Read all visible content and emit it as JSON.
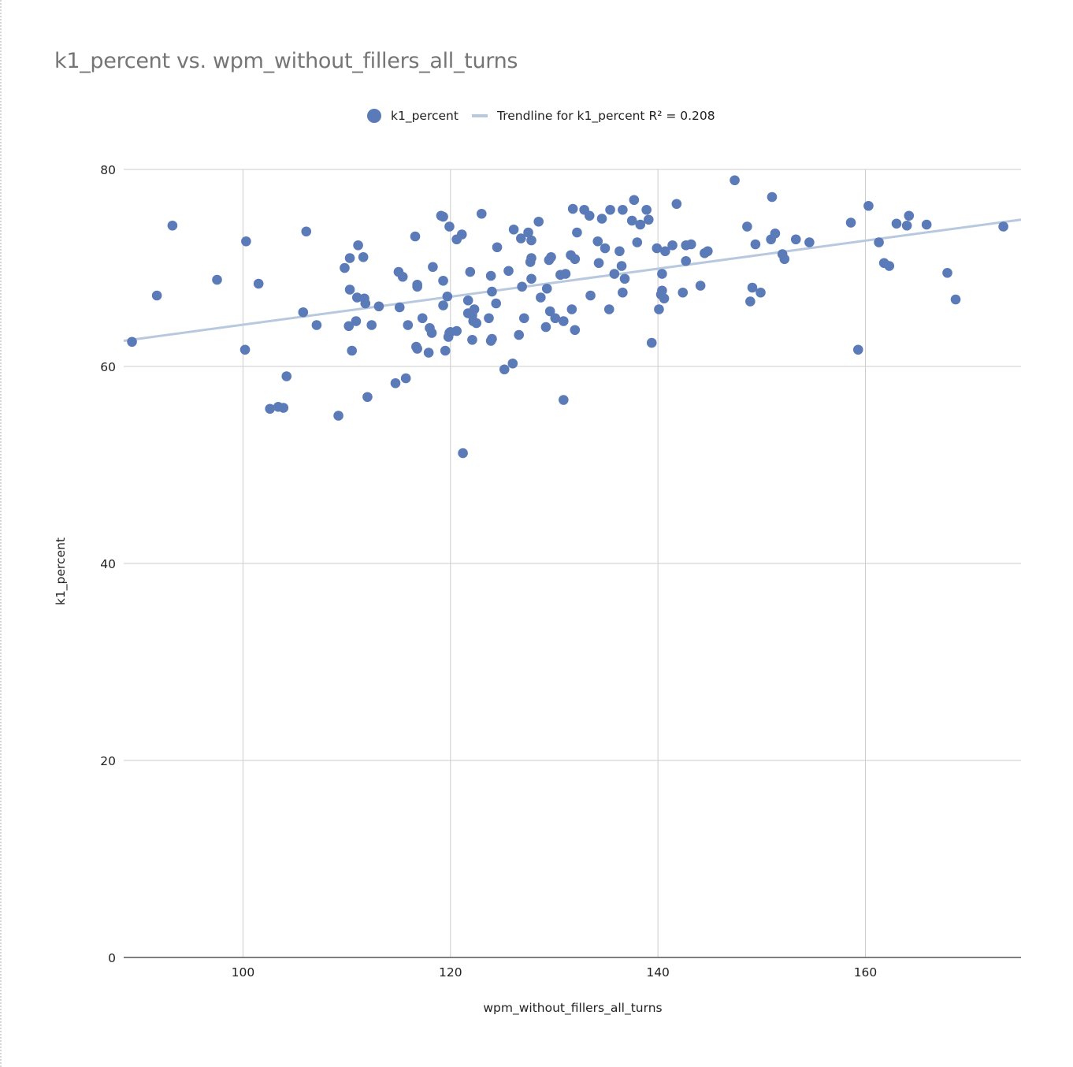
{
  "chart_data": {
    "type": "scatter",
    "title": "k1_percent vs. wpm_without_fillers_all_turns",
    "xlabel": "wpm_without_fillers_all_turns",
    "ylabel": "k1_percent",
    "xlim": [
      88.5,
      175
    ],
    "ylim": [
      0,
      80
    ],
    "xticks": [
      100,
      120,
      140,
      160
    ],
    "yticks": [
      0,
      20,
      40,
      60,
      80
    ],
    "grid": true,
    "legend_position": "top",
    "colors": {
      "points": "#5a7ab8",
      "trendline": "#b8c9df"
    },
    "series": [
      {
        "name": "k1_percent",
        "points": [
          [
            89.3,
            62.5
          ],
          [
            91.7,
            67.2
          ],
          [
            93.2,
            74.3
          ],
          [
            97.5,
            68.8
          ],
          [
            100.2,
            61.7
          ],
          [
            100.3,
            72.7
          ],
          [
            101.5,
            68.4
          ],
          [
            102.6,
            55.7
          ],
          [
            103.4,
            55.9
          ],
          [
            103.9,
            55.8
          ],
          [
            104.2,
            59.0
          ],
          [
            105.8,
            65.5
          ],
          [
            106.1,
            73.7
          ],
          [
            107.1,
            64.2
          ],
          [
            109.2,
            55.0
          ],
          [
            109.8,
            70.0
          ],
          [
            110.2,
            64.1
          ],
          [
            110.3,
            71.0
          ],
          [
            110.3,
            67.8
          ],
          [
            110.5,
            61.6
          ],
          [
            110.9,
            64.6
          ],
          [
            111.0,
            67.0
          ],
          [
            111.1,
            72.3
          ],
          [
            111.6,
            71.1
          ],
          [
            111.7,
            66.9
          ],
          [
            111.8,
            66.4
          ],
          [
            112.0,
            56.9
          ],
          [
            112.4,
            64.2
          ],
          [
            113.1,
            66.1
          ],
          [
            114.7,
            58.3
          ],
          [
            115.0,
            69.6
          ],
          [
            115.1,
            66.0
          ],
          [
            115.4,
            69.1
          ],
          [
            115.7,
            58.8
          ],
          [
            115.9,
            64.2
          ],
          [
            116.6,
            73.2
          ],
          [
            116.7,
            62.0
          ],
          [
            116.8,
            68.3
          ],
          [
            116.8,
            61.8
          ],
          [
            116.8,
            68.1
          ],
          [
            117.3,
            64.9
          ],
          [
            117.9,
            61.4
          ],
          [
            118.0,
            63.9
          ],
          [
            118.2,
            63.4
          ],
          [
            118.3,
            70.1
          ],
          [
            119.1,
            75.3
          ],
          [
            119.3,
            75.2
          ],
          [
            119.3,
            68.7
          ],
          [
            119.3,
            66.2
          ],
          [
            119.5,
            61.6
          ],
          [
            119.7,
            67.1
          ],
          [
            119.8,
            63.0
          ],
          [
            119.9,
            63.4
          ],
          [
            119.9,
            74.2
          ],
          [
            120.0,
            63.5
          ],
          [
            120.6,
            72.9
          ],
          [
            120.6,
            63.6
          ],
          [
            121.1,
            73.4
          ],
          [
            121.2,
            51.2
          ],
          [
            121.7,
            65.4
          ],
          [
            121.7,
            66.7
          ],
          [
            121.9,
            69.6
          ],
          [
            122.1,
            65.2
          ],
          [
            122.1,
            62.7
          ],
          [
            122.2,
            64.6
          ],
          [
            122.3,
            65.8
          ],
          [
            122.5,
            64.4
          ],
          [
            123.0,
            75.5
          ],
          [
            123.7,
            64.9
          ],
          [
            123.9,
            62.6
          ],
          [
            123.9,
            69.2
          ],
          [
            124.0,
            62.8
          ],
          [
            124.0,
            67.6
          ],
          [
            124.4,
            66.4
          ],
          [
            124.5,
            72.1
          ],
          [
            125.2,
            59.7
          ],
          [
            125.6,
            69.7
          ],
          [
            126.0,
            60.3
          ],
          [
            126.1,
            73.9
          ],
          [
            126.6,
            63.2
          ],
          [
            126.8,
            73.0
          ],
          [
            126.9,
            68.1
          ],
          [
            127.1,
            64.9
          ],
          [
            127.5,
            73.6
          ],
          [
            127.7,
            70.6
          ],
          [
            127.8,
            72.8
          ],
          [
            127.8,
            71.0
          ],
          [
            127.8,
            68.9
          ],
          [
            128.5,
            74.7
          ],
          [
            128.7,
            67.0
          ],
          [
            129.2,
            64.0
          ],
          [
            129.3,
            67.9
          ],
          [
            129.5,
            70.8
          ],
          [
            129.6,
            65.6
          ],
          [
            129.7,
            71.1
          ],
          [
            130.1,
            64.9
          ],
          [
            130.6,
            69.3
          ],
          [
            130.9,
            56.6
          ],
          [
            130.9,
            64.6
          ],
          [
            131.1,
            69.4
          ],
          [
            131.6,
            71.3
          ],
          [
            131.7,
            65.8
          ],
          [
            131.8,
            76.0
          ],
          [
            132.0,
            70.9
          ],
          [
            132.0,
            63.7
          ],
          [
            132.2,
            73.6
          ],
          [
            132.9,
            75.9
          ],
          [
            133.4,
            75.3
          ],
          [
            133.5,
            67.2
          ],
          [
            134.2,
            72.7
          ],
          [
            134.3,
            70.5
          ],
          [
            134.6,
            75.0
          ],
          [
            134.9,
            72.0
          ],
          [
            135.3,
            65.8
          ],
          [
            135.4,
            75.9
          ],
          [
            135.8,
            69.4
          ],
          [
            136.3,
            71.7
          ],
          [
            136.5,
            70.2
          ],
          [
            136.6,
            67.5
          ],
          [
            136.6,
            75.9
          ],
          [
            136.8,
            68.9
          ],
          [
            137.5,
            74.8
          ],
          [
            137.7,
            76.9
          ],
          [
            138.0,
            72.6
          ],
          [
            138.3,
            74.4
          ],
          [
            138.9,
            75.9
          ],
          [
            139.1,
            74.9
          ],
          [
            139.4,
            62.4
          ],
          [
            139.9,
            72.0
          ],
          [
            140.1,
            65.8
          ],
          [
            140.3,
            67.3
          ],
          [
            140.4,
            69.4
          ],
          [
            140.4,
            67.7
          ],
          [
            140.6,
            66.9
          ],
          [
            140.7,
            71.7
          ],
          [
            141.4,
            72.3
          ],
          [
            141.8,
            76.5
          ],
          [
            142.4,
            67.5
          ],
          [
            142.7,
            72.3
          ],
          [
            142.7,
            70.7
          ],
          [
            143.2,
            72.4
          ],
          [
            144.1,
            68.2
          ],
          [
            144.5,
            71.5
          ],
          [
            144.8,
            71.7
          ],
          [
            147.4,
            78.9
          ],
          [
            148.6,
            74.2
          ],
          [
            148.9,
            66.6
          ],
          [
            149.1,
            68.0
          ],
          [
            149.4,
            72.4
          ],
          [
            149.9,
            67.5
          ],
          [
            150.9,
            72.9
          ],
          [
            151.0,
            77.2
          ],
          [
            151.3,
            73.5
          ],
          [
            152.0,
            71.4
          ],
          [
            152.2,
            70.9
          ],
          [
            153.3,
            72.9
          ],
          [
            154.6,
            72.6
          ],
          [
            158.6,
            74.6
          ],
          [
            159.3,
            61.7
          ],
          [
            160.3,
            76.3
          ],
          [
            161.3,
            72.6
          ],
          [
            161.8,
            70.5
          ],
          [
            162.3,
            70.2
          ],
          [
            163.0,
            74.5
          ],
          [
            164.0,
            74.3
          ],
          [
            164.2,
            75.3
          ],
          [
            165.9,
            74.4
          ],
          [
            167.9,
            69.5
          ],
          [
            168.7,
            66.8
          ],
          [
            173.3,
            74.2
          ]
        ]
      },
      {
        "name": "Trendline for k1_percent R² = 0.208",
        "type": "line",
        "values": [
          [
            88.5,
            62.6
          ],
          [
            175,
            74.9
          ]
        ]
      }
    ]
  }
}
